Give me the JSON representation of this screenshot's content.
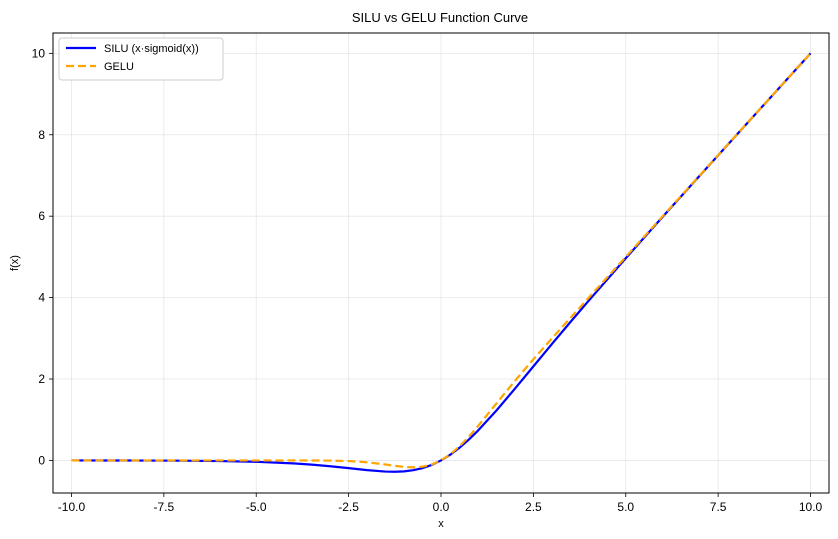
{
  "chart_data": {
    "type": "line",
    "title": "SILU vs GELU Function Curve",
    "xlabel": "x",
    "ylabel": "f(x)",
    "xlim": [
      -10.5,
      10.5
    ],
    "ylim": [
      -0.8,
      10.5
    ],
    "xticks": [
      -10.0,
      -7.5,
      -5.0,
      -2.5,
      0.0,
      2.5,
      5.0,
      7.5,
      10.0
    ],
    "xtick_labels": [
      "-10.0",
      "-7.5",
      "-5.0",
      "-2.5",
      "0.0",
      "2.5",
      "5.0",
      "7.5",
      "10.0"
    ],
    "yticks": [
      0,
      2,
      4,
      6,
      8,
      10
    ],
    "ytick_labels": [
      "0",
      "2",
      "4",
      "6",
      "8",
      "10"
    ],
    "grid": true,
    "legend_position": "top-left",
    "series": [
      {
        "name": "SILU (x·sigmoid(x))",
        "color": "#0000ff",
        "style": "solid",
        "x": [
          -10,
          -9,
          -8,
          -7,
          -6,
          -5,
          -4,
          -3.5,
          -3,
          -2.5,
          -2,
          -1.5,
          -1.25,
          -1,
          -0.75,
          -0.5,
          -0.25,
          0,
          0.25,
          0.5,
          0.75,
          1,
          1.5,
          2,
          2.5,
          3,
          3.5,
          4,
          5,
          6,
          7,
          8,
          9,
          10
        ],
        "y": [
          -0.0005,
          -0.0011,
          -0.0027,
          -0.0064,
          -0.0148,
          -0.0335,
          -0.0719,
          -0.1025,
          -0.1423,
          -0.1896,
          -0.2384,
          -0.2736,
          -0.2785,
          -0.2689,
          -0.24,
          -0.1888,
          -0.1097,
          0,
          0.1403,
          0.3112,
          0.51,
          0.7311,
          1.2264,
          1.7616,
          2.3104,
          2.8577,
          3.3975,
          3.9281,
          4.9665,
          5.9852,
          6.9936,
          7.9973,
          8.9989,
          9.9995
        ]
      },
      {
        "name": "GELU",
        "color": "#ffa500",
        "style": "dashed",
        "x": [
          -10,
          -9,
          -8,
          -7,
          -6,
          -5,
          -4,
          -3.5,
          -3,
          -2.5,
          -2,
          -1.5,
          -1.25,
          -1,
          -0.75,
          -0.5,
          -0.25,
          0,
          0.25,
          0.5,
          0.75,
          1,
          1.5,
          2,
          2.5,
          3,
          3.5,
          4,
          5,
          6,
          7,
          8,
          9,
          10
        ],
        "y": [
          0,
          0,
          0,
          0,
          0,
          0,
          -0.0001,
          -0.0008,
          -0.0036,
          -0.0155,
          -0.0455,
          -0.1002,
          -0.132,
          -0.1587,
          -0.17,
          -0.1543,
          -0.0997,
          0,
          0.1503,
          0.3457,
          0.58,
          0.8413,
          1.3998,
          1.9545,
          2.4845,
          2.9964,
          3.4992,
          3.9999,
          5.0,
          6.0,
          7.0,
          8.0,
          9.0,
          10.0
        ]
      }
    ]
  }
}
